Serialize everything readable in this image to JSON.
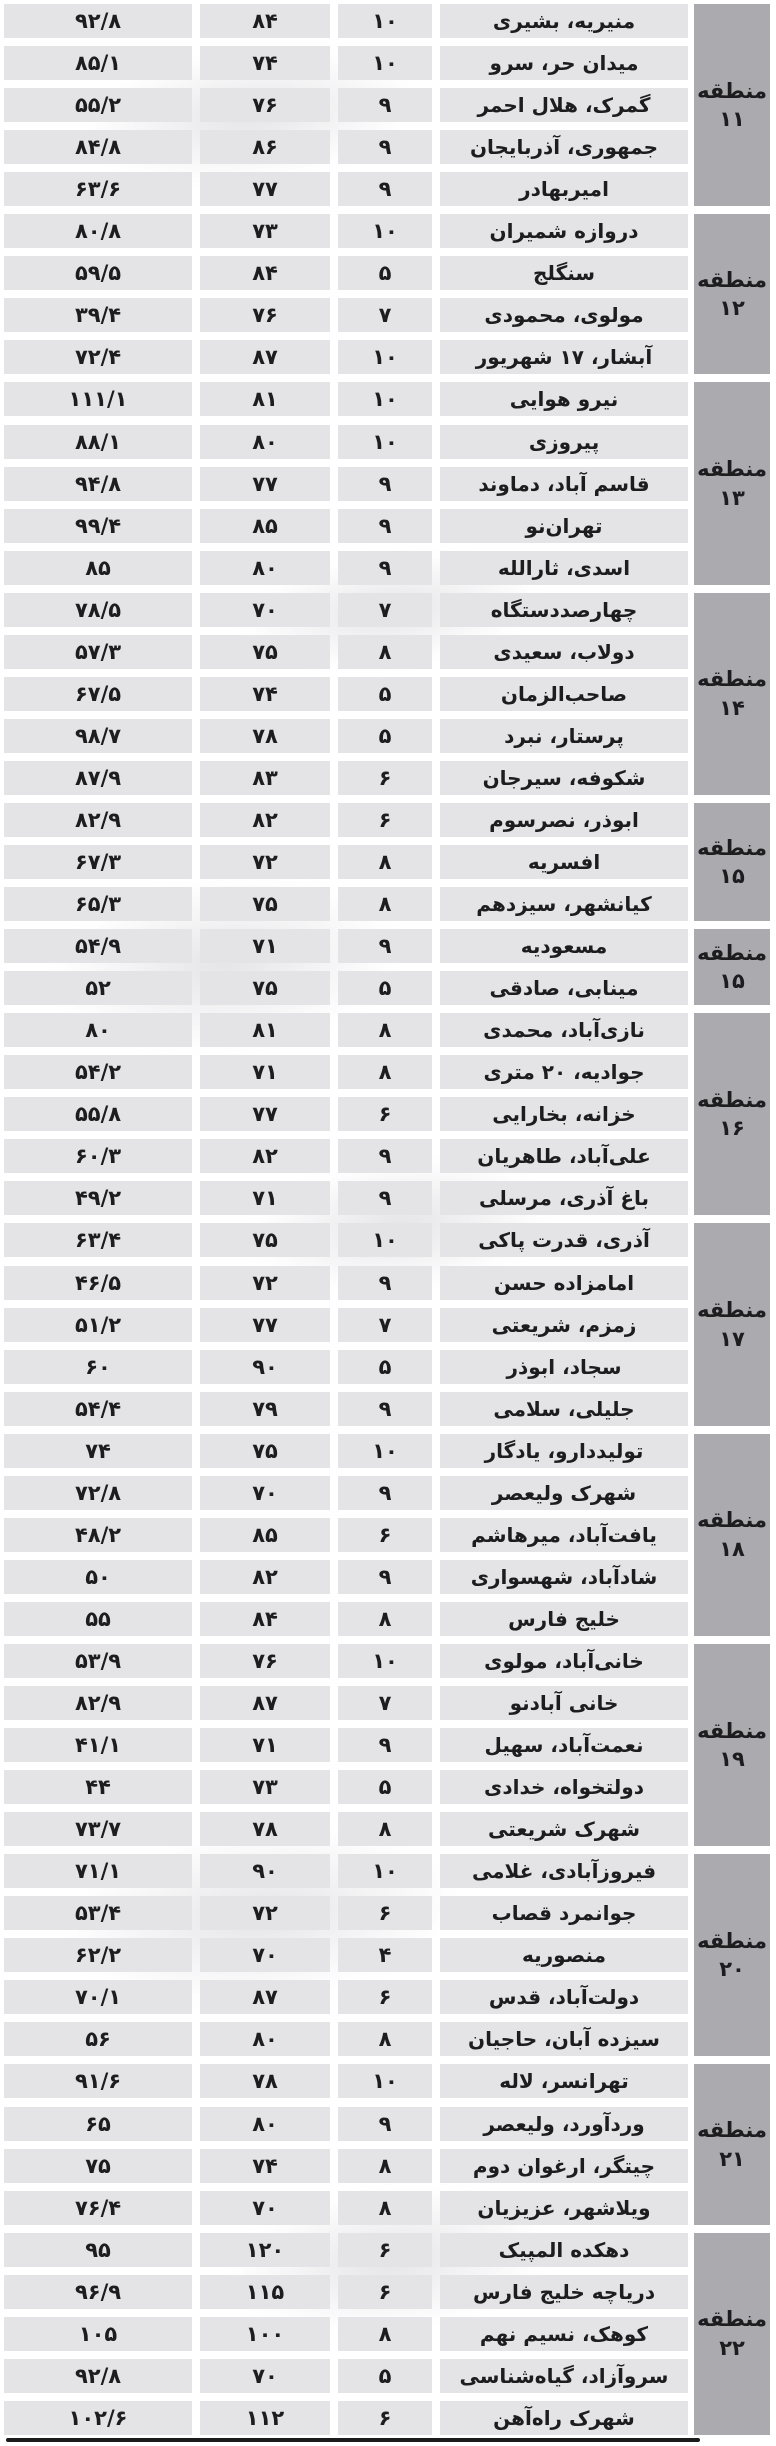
{
  "colors": {
    "row_band": "#e4e4e7",
    "district_block": "#ababaf",
    "text": "#1d1d1f",
    "rule": "#1c1c1c",
    "watermark": "#cfcfd4"
  },
  "chart_data": {
    "type": "table",
    "direction": "rtl",
    "districts": [
      {
        "label": "منطقه",
        "number": "۱۱",
        "row_start": 0,
        "row_count": 5
      },
      {
        "label": "منطقه",
        "number": "۱۲",
        "row_start": 5,
        "row_count": 4
      },
      {
        "label": "منطقه",
        "number": "۱۳",
        "row_start": 9,
        "row_count": 5
      },
      {
        "label": "منطقه",
        "number": "۱۴",
        "row_start": 14,
        "row_count": 5
      },
      {
        "label": "منطقه",
        "number": "۱۵",
        "row_start": 19,
        "row_count": 3
      },
      {
        "label": "منطقه",
        "number": "۱۵",
        "row_start": 22,
        "row_count": 2
      },
      {
        "label": "منطقه",
        "number": "۱۶",
        "row_start": 24,
        "row_count": 5
      },
      {
        "label": "منطقه",
        "number": "۱۷",
        "row_start": 29,
        "row_count": 5
      },
      {
        "label": "منطقه",
        "number": "۱۸",
        "row_start": 34,
        "row_count": 5
      },
      {
        "label": "منطقه",
        "number": "۱۹",
        "row_start": 39,
        "row_count": 5
      },
      {
        "label": "منطقه",
        "number": "۲۰",
        "row_start": 44,
        "row_count": 5
      },
      {
        "label": "منطقه",
        "number": "۲۱",
        "row_start": 49,
        "row_count": 4
      },
      {
        "label": "منطقه",
        "number": "۲۲",
        "row_start": 53,
        "row_count": 5
      }
    ],
    "rows": [
      {
        "name": "منیریه، بشیری",
        "a": "۱۰",
        "b": "۸۴",
        "c": "۹۲/۸"
      },
      {
        "name": "میدان حر، سرو",
        "a": "۱۰",
        "b": "۷۴",
        "c": "۸۵/۱"
      },
      {
        "name": "گمرک، هلال احمر",
        "a": "۹",
        "b": "۷۶",
        "c": "۵۵/۲"
      },
      {
        "name": "جمهوری، آذربایجان",
        "a": "۹",
        "b": "۸۶",
        "c": "۸۴/۸"
      },
      {
        "name": "امیربهادر",
        "a": "۹",
        "b": "۷۷",
        "c": "۶۳/۶"
      },
      {
        "name": "دروازه شمیران",
        "a": "۱۰",
        "b": "۷۳",
        "c": "۸۰/۸"
      },
      {
        "name": "سنگلج",
        "a": "۵",
        "b": "۸۴",
        "c": "۵۹/۵"
      },
      {
        "name": "مولوی، محمودی",
        "a": "۷",
        "b": "۷۶",
        "c": "۳۹/۴"
      },
      {
        "name": "آبشار، ۱۷ شهریور",
        "a": "۱۰",
        "b": "۸۷",
        "c": "۷۲/۴"
      },
      {
        "name": "نیرو هوایی",
        "a": "۱۰",
        "b": "۸۱",
        "c": "۱۱۱/۱"
      },
      {
        "name": "پیروزی",
        "a": "۱۰",
        "b": "۸۰",
        "c": "۸۸/۱"
      },
      {
        "name": "قاسم آباد، دماوند",
        "a": "۹",
        "b": "۷۷",
        "c": "۹۴/۸"
      },
      {
        "name": "تهران‌نو",
        "a": "۹",
        "b": "۸۵",
        "c": "۹۹/۴"
      },
      {
        "name": "اسدی، ثارالله",
        "a": "۹",
        "b": "۸۰",
        "c": "۸۵"
      },
      {
        "name": "چهارصددستگاه",
        "a": "۷",
        "b": "۷۰",
        "c": "۷۸/۵"
      },
      {
        "name": "دولاب، سعیدی",
        "a": "۸",
        "b": "۷۵",
        "c": "۵۷/۳"
      },
      {
        "name": "صاحب‌الزمان",
        "a": "۵",
        "b": "۷۴",
        "c": "۶۷/۵"
      },
      {
        "name": "پرستار، نبرد",
        "a": "۵",
        "b": "۷۸",
        "c": "۹۸/۷"
      },
      {
        "name": "شکوفه، سیرجان",
        "a": "۶",
        "b": "۸۳",
        "c": "۸۷/۹"
      },
      {
        "name": "ابوذر، نصرسوم",
        "a": "۶",
        "b": "۸۲",
        "c": "۸۲/۹"
      },
      {
        "name": "افسریه",
        "a": "۸",
        "b": "۷۲",
        "c": "۶۷/۳"
      },
      {
        "name": "کیانشهر، سیزدهم",
        "a": "۸",
        "b": "۷۵",
        "c": "۶۵/۳"
      },
      {
        "name": "مسعودیه",
        "a": "۹",
        "b": "۷۱",
        "c": "۵۴/۹"
      },
      {
        "name": "مینابی، صادقی",
        "a": "۵",
        "b": "۷۵",
        "c": "۵۲"
      },
      {
        "name": "نازی‌آباد، محمدی",
        "a": "۸",
        "b": "۸۱",
        "c": "۸۰"
      },
      {
        "name": "جوادیه، ۲۰ متری",
        "a": "۸",
        "b": "۷۱",
        "c": "۵۴/۲"
      },
      {
        "name": "خزانه، بخارایی",
        "a": "۶",
        "b": "۷۷",
        "c": "۵۵/۸"
      },
      {
        "name": "علی‌آباد، طاهریان",
        "a": "۹",
        "b": "۸۲",
        "c": "۶۰/۳"
      },
      {
        "name": "باغ آذری، مرسلی",
        "a": "۹",
        "b": "۷۱",
        "c": "۴۹/۲"
      },
      {
        "name": "آذری، قدرت پاکی",
        "a": "۱۰",
        "b": "۷۵",
        "c": "۶۳/۴"
      },
      {
        "name": "امامزاده حسن",
        "a": "۹",
        "b": "۷۲",
        "c": "۴۶/۵"
      },
      {
        "name": "زمزم، شریعتی",
        "a": "۷",
        "b": "۷۷",
        "c": "۵۱/۲"
      },
      {
        "name": "سجاد، ابوذر",
        "a": "۵",
        "b": "۹۰",
        "c": "۶۰"
      },
      {
        "name": "جلیلی، سلامی",
        "a": "۹",
        "b": "۷۹",
        "c": "۵۴/۴"
      },
      {
        "name": "تولیددارو، یادگار",
        "a": "۱۰",
        "b": "۷۵",
        "c": "۷۴"
      },
      {
        "name": "شهرک ولیعصر",
        "a": "۹",
        "b": "۷۰",
        "c": "۷۲/۸"
      },
      {
        "name": "یافت‌آباد، میرهاشم",
        "a": "۶",
        "b": "۸۵",
        "c": "۴۸/۲"
      },
      {
        "name": "شادآباد، شهسواری",
        "a": "۹",
        "b": "۸۲",
        "c": "۵۰"
      },
      {
        "name": "خلیج فارس",
        "a": "۸",
        "b": "۸۴",
        "c": "۵۵"
      },
      {
        "name": "خانی‌آباد، مولوی",
        "a": "۱۰",
        "b": "۷۶",
        "c": "۵۳/۹"
      },
      {
        "name": "خانی آبادنو",
        "a": "۷",
        "b": "۸۷",
        "c": "۸۲/۹"
      },
      {
        "name": "نعمت‌آباد، سهیل",
        "a": "۹",
        "b": "۷۱",
        "c": "۴۱/۱"
      },
      {
        "name": "دولتخواه، خدادی",
        "a": "۵",
        "b": "۷۳",
        "c": "۴۴"
      },
      {
        "name": "شهرک شریعتی",
        "a": "۸",
        "b": "۷۸",
        "c": "۷۳/۷"
      },
      {
        "name": "فیروزآبادی، غلامی",
        "a": "۱۰",
        "b": "۹۰",
        "c": "۷۱/۱"
      },
      {
        "name": "جوانمرد قصاب",
        "a": "۶",
        "b": "۷۲",
        "c": "۵۳/۴"
      },
      {
        "name": "منصوریه",
        "a": "۴",
        "b": "۷۰",
        "c": "۶۲/۲"
      },
      {
        "name": "دولت‌آباد، قدس",
        "a": "۶",
        "b": "۸۷",
        "c": "۷۰/۱"
      },
      {
        "name": "سیزده آبان، حاجیان",
        "a": "۸",
        "b": "۸۰",
        "c": "۵۶"
      },
      {
        "name": "تهرانسر، لاله",
        "a": "۱۰",
        "b": "۷۸",
        "c": "۹۱/۶"
      },
      {
        "name": "وردآورد، ولیعصر",
        "a": "۹",
        "b": "۸۰",
        "c": "۶۵"
      },
      {
        "name": "چیتگر، ارغوان دوم",
        "a": "۸",
        "b": "۷۴",
        "c": "۷۵"
      },
      {
        "name": "ویلاشهر، عزیزیان",
        "a": "۸",
        "b": "۷۰",
        "c": "۷۶/۴"
      },
      {
        "name": "دهکده المپیک",
        "a": "۶",
        "b": "۱۲۰",
        "c": "۹۵"
      },
      {
        "name": "دریاچه خلیج فارس",
        "a": "۶",
        "b": "۱۱۵",
        "c": "۹۶/۹"
      },
      {
        "name": "کوهک، نسیم نهم",
        "a": "۸",
        "b": "۱۰۰",
        "c": "۱۰۵"
      },
      {
        "name": "سروآزاد، گیاه‌شناسی",
        "a": "۵",
        "b": "۷۰",
        "c": "۹۲/۸"
      },
      {
        "name": "شهرک راه‌آهن",
        "a": "۶",
        "b": "۱۱۲",
        "c": "۱۰۲/۶"
      }
    ]
  }
}
